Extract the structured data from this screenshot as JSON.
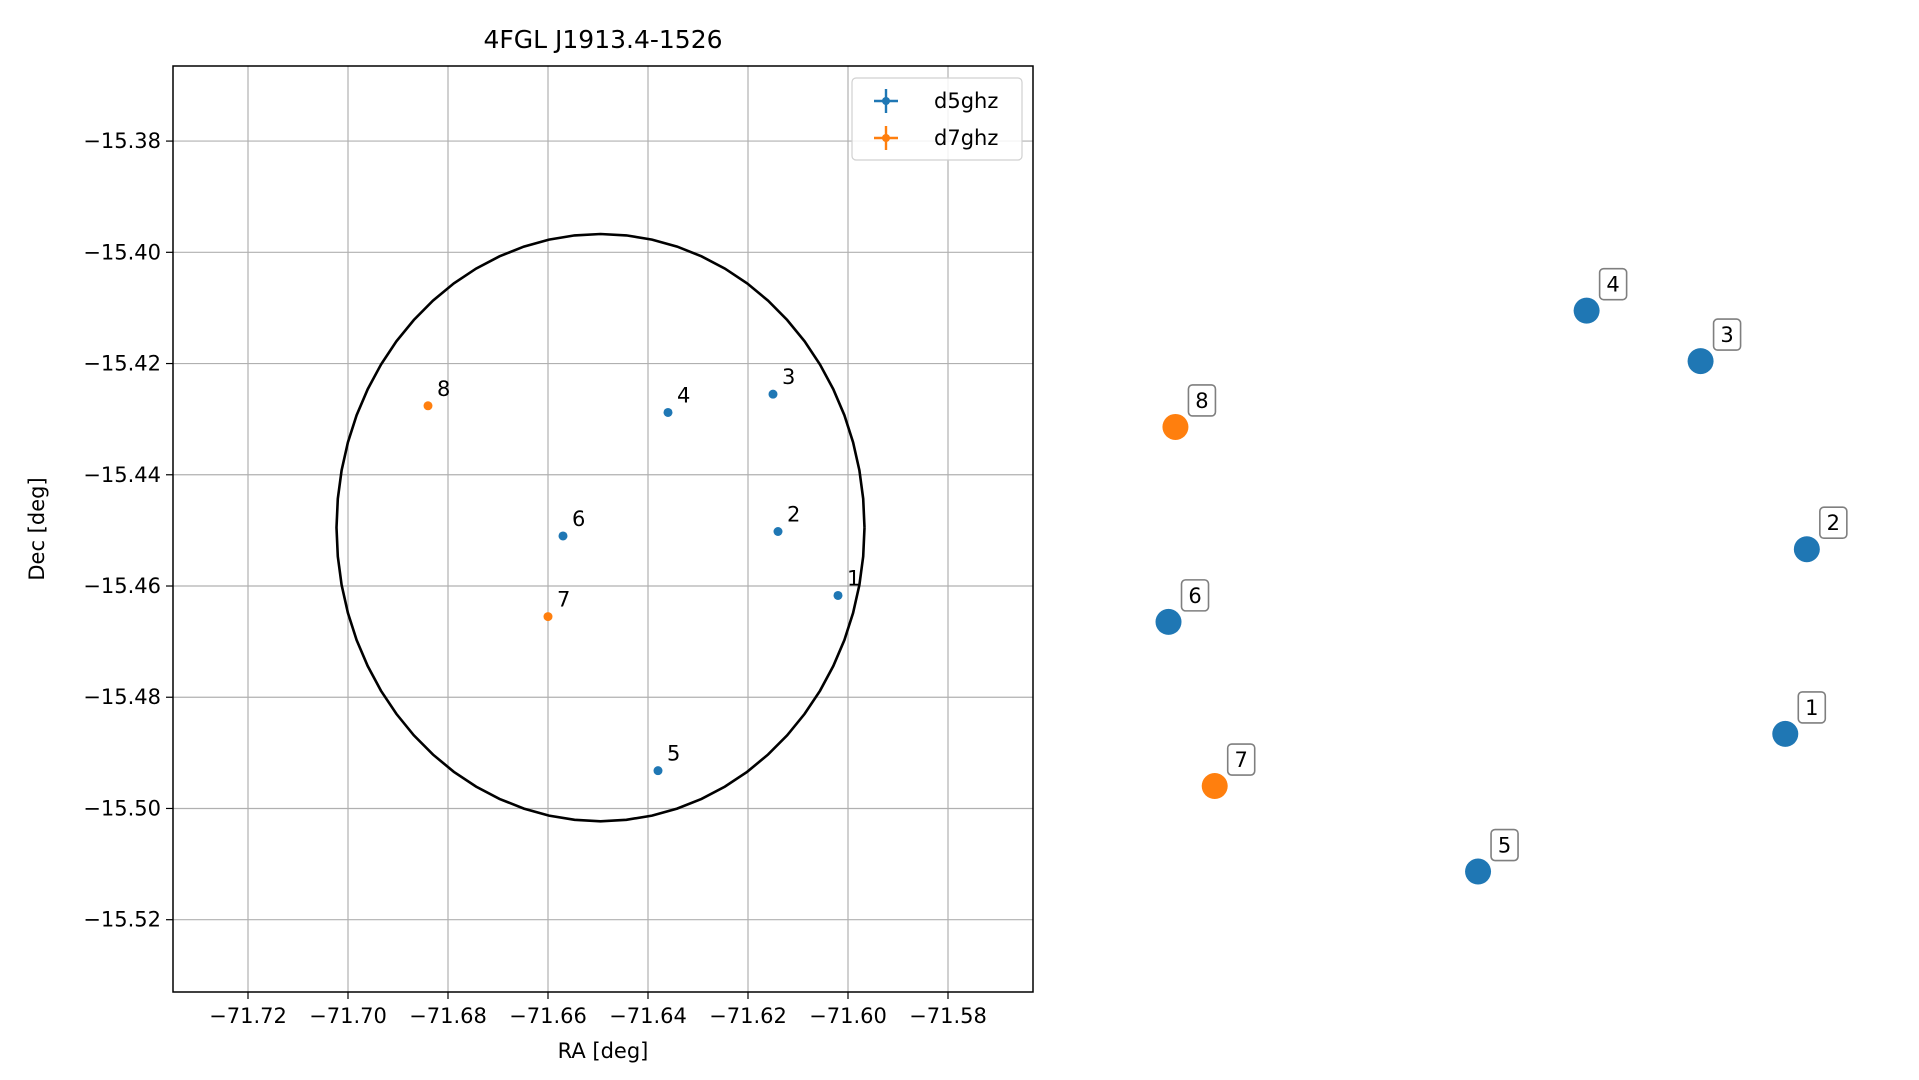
{
  "chart_data": [
    {
      "type": "scatter",
      "title": "4FGL J1913.4-1526",
      "xlabel": "RA [deg]",
      "ylabel": "Dec [deg]",
      "xlim": [
        -71.735,
        -71.563
      ],
      "ylim": [
        -15.533,
        -15.3665
      ],
      "xticks": [
        -71.72,
        -71.7,
        -71.68,
        -71.66,
        -71.64,
        -71.62,
        -71.6,
        -71.58
      ],
      "xtick_labels": [
        "−71.72",
        "−71.70",
        "−71.68",
        "−71.66",
        "−71.64",
        "−71.62",
        "−71.60",
        "−71.58"
      ],
      "yticks": [
        -15.38,
        -15.4,
        -15.42,
        -15.44,
        -15.46,
        -15.48,
        -15.5,
        -15.52
      ],
      "ytick_labels": [
        "−15.38",
        "−15.40",
        "−15.42",
        "−15.44",
        "−15.46",
        "−15.48",
        "−15.50",
        "−15.52"
      ],
      "grid": true,
      "legend_position": "top-right",
      "circle": {
        "center": [
          -71.6495,
          -15.4495
        ],
        "radius_deg": 0.0528
      },
      "series": [
        {
          "name": "d5ghz",
          "color": "#1f77b4",
          "points": [
            {
              "label": "1",
              "x": -71.602,
              "y": -15.4617
            },
            {
              "label": "2",
              "x": -71.614,
              "y": -15.4502
            },
            {
              "label": "3",
              "x": -71.615,
              "y": -15.4255
            },
            {
              "label": "4",
              "x": -71.636,
              "y": -15.4288
            },
            {
              "label": "5",
              "x": -71.638,
              "y": -15.4932
            },
            {
              "label": "6",
              "x": -71.657,
              "y": -15.451
            }
          ]
        },
        {
          "name": "d7ghz",
          "color": "#ff7f0e",
          "points": [
            {
              "label": "7",
              "x": -71.66,
              "y": -15.4655
            },
            {
              "label": "8",
              "x": -71.684,
              "y": -15.4276
            }
          ]
        }
      ]
    },
    {
      "type": "scatter",
      "title": "",
      "xlabel": "",
      "ylabel": "",
      "axes_visible": false,
      "series": [
        {
          "name": "d5ghz",
          "color": "#1f77b4",
          "points": [
            {
              "label": "1",
              "x": 0.864,
              "y": 0.282
            },
            {
              "label": "2",
              "x": 0.892,
              "y": 0.498
            },
            {
              "label": "3",
              "x": 0.754,
              "y": 0.718
            },
            {
              "label": "4",
              "x": 0.606,
              "y": 0.777
            },
            {
              "label": "5",
              "x": 0.465,
              "y": 0.121
            },
            {
              "label": "6",
              "x": 0.063,
              "y": 0.413
            }
          ]
        },
        {
          "name": "d7ghz",
          "color": "#ff7f0e",
          "points": [
            {
              "label": "7",
              "x": 0.123,
              "y": 0.221
            },
            {
              "label": "8",
              "x": 0.072,
              "y": 0.641
            }
          ]
        }
      ]
    }
  ]
}
